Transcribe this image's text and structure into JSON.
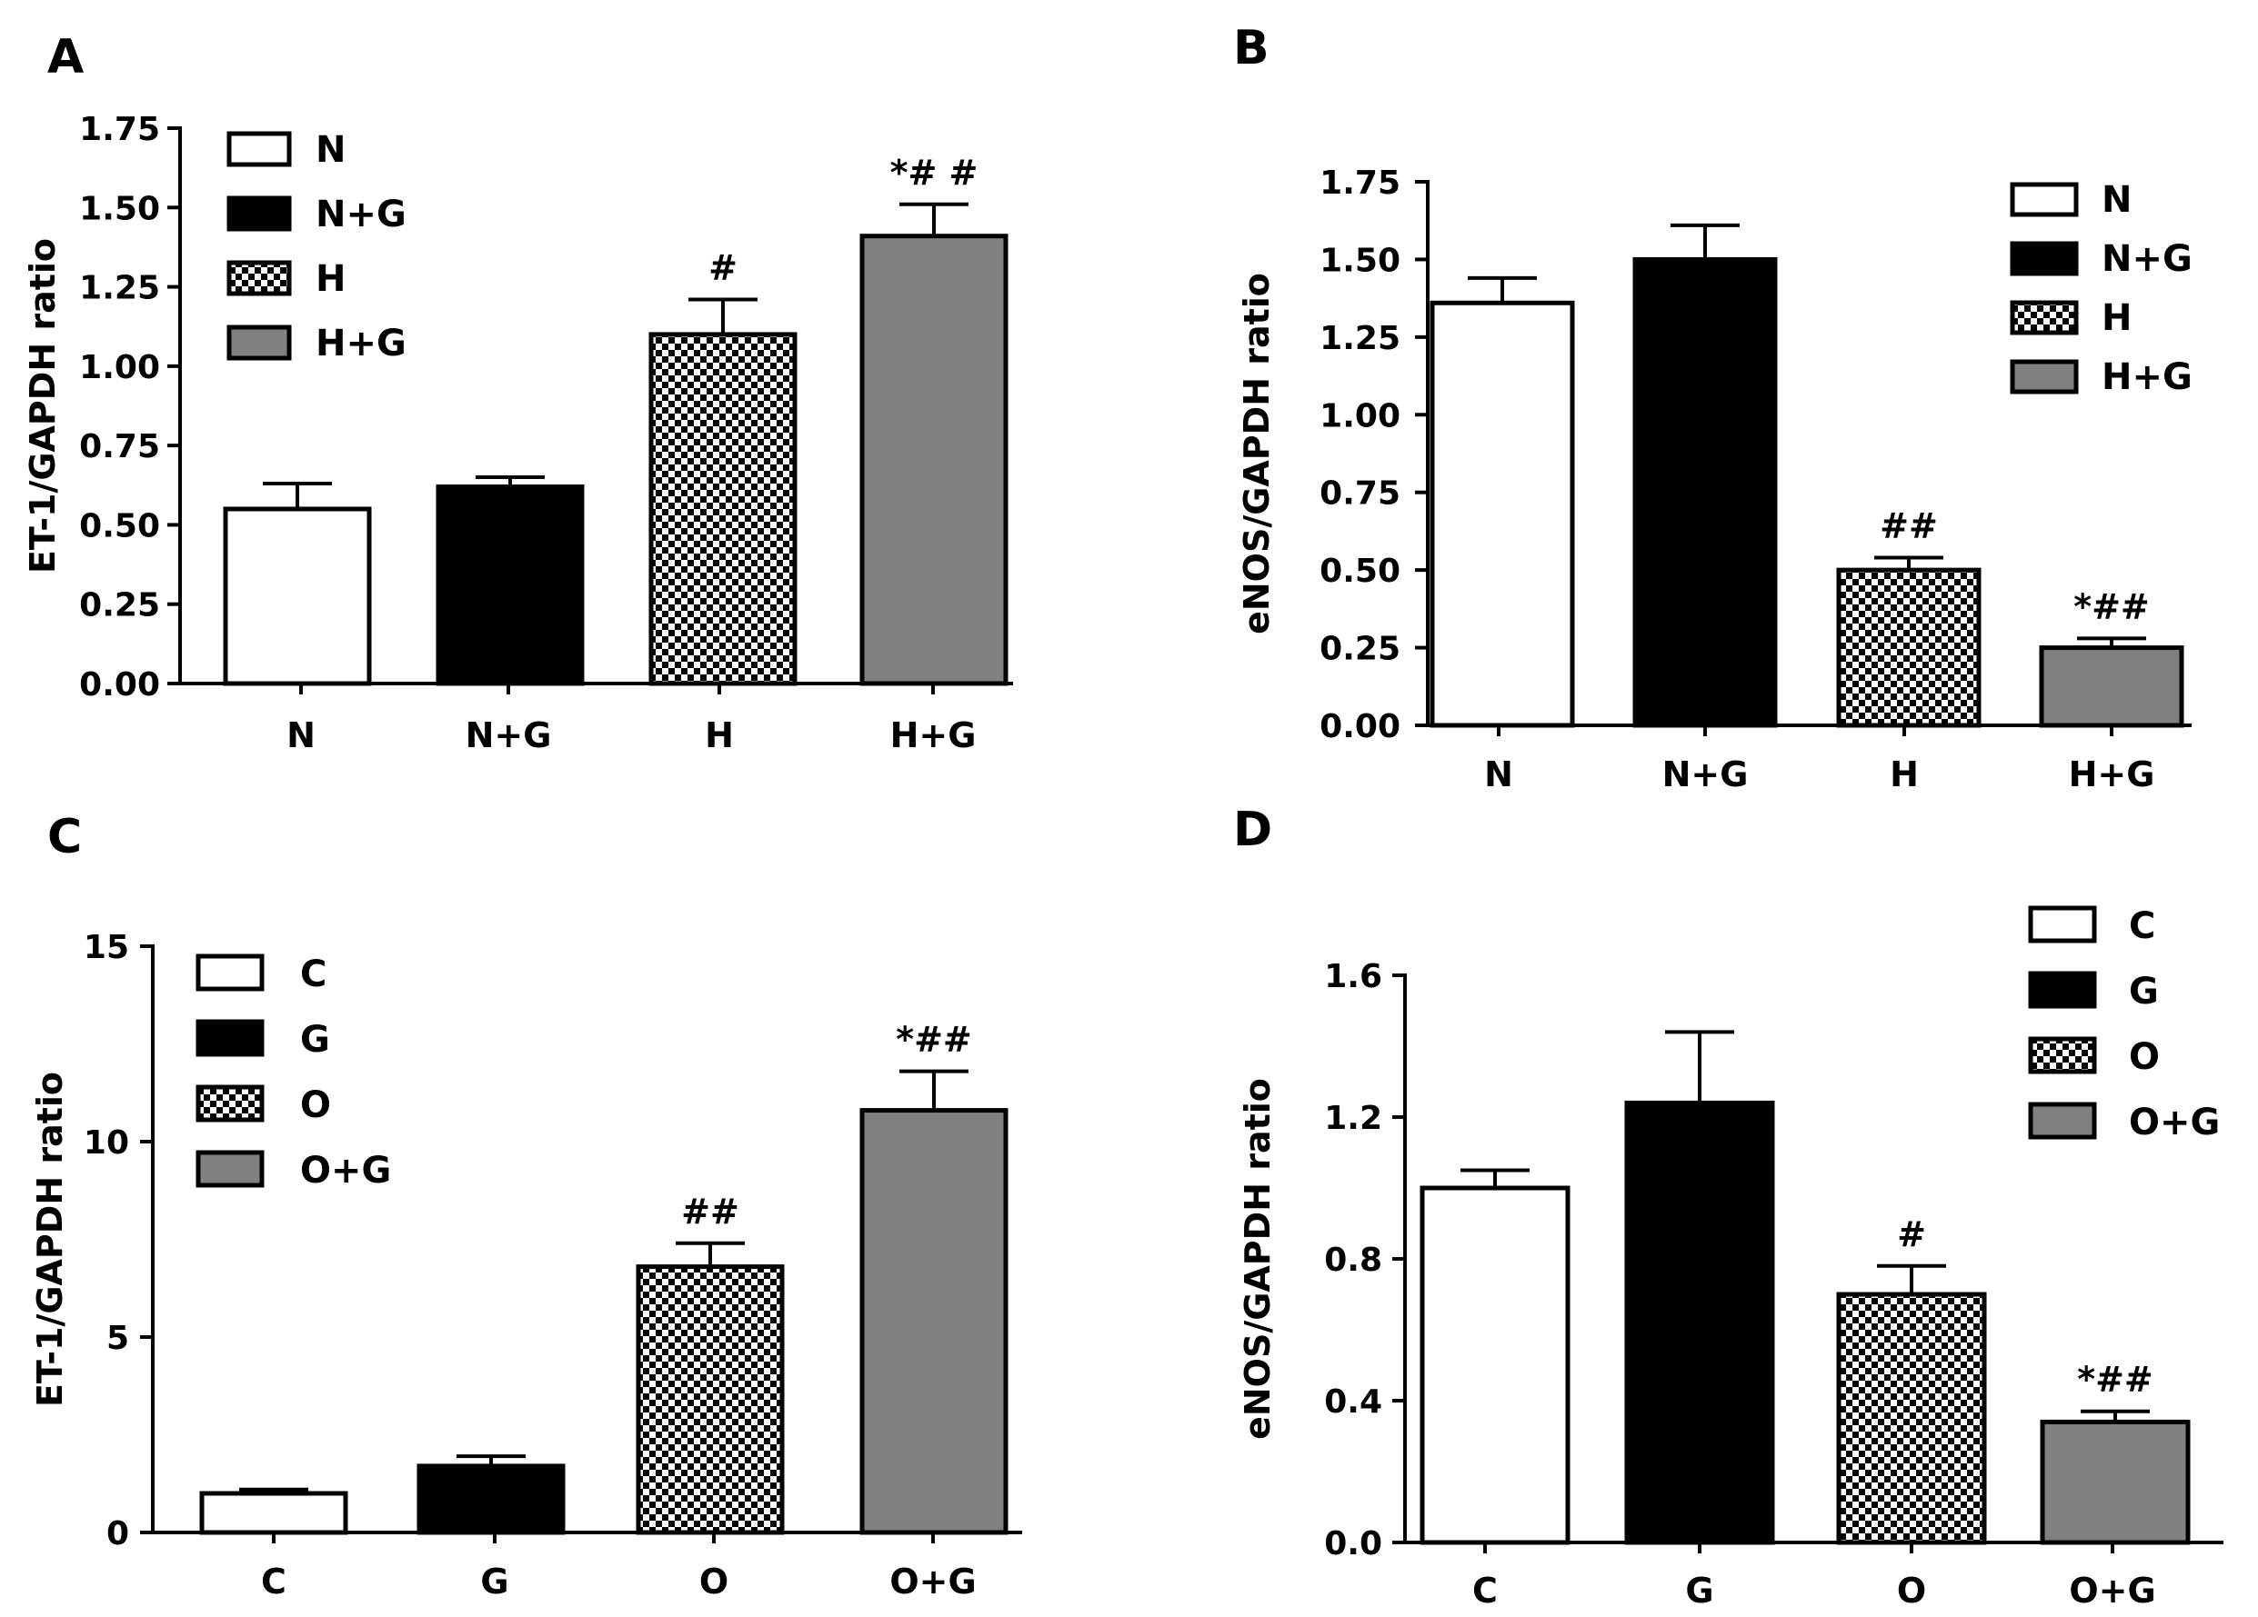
{
  "chart_data": [
    {
      "panel": "A",
      "type": "bar",
      "ylabel": "ET-1/GAPDH ratio",
      "xlabel": "",
      "ylim": [
        0,
        1.75
      ],
      "yticks": [
        "0.00",
        "0.25",
        "0.50",
        "0.75",
        "1.00",
        "1.25",
        "1.50",
        "1.75"
      ],
      "categories": [
        "N",
        "N+G",
        "H",
        "H+G"
      ],
      "values": [
        0.55,
        0.62,
        1.1,
        1.41
      ],
      "errors": [
        0.08,
        0.03,
        0.11,
        0.1
      ],
      "annotations": [
        "",
        "",
        "#",
        "*# #"
      ],
      "legend": [
        "N",
        "N+G",
        "H",
        "H+G"
      ],
      "legend_position": "top-left"
    },
    {
      "panel": "B",
      "type": "bar",
      "ylabel": "eNOS/GAPDH ratio",
      "xlabel": "",
      "ylim": [
        0,
        1.75
      ],
      "yticks": [
        "0.00",
        "0.25",
        "0.50",
        "0.75",
        "1.00",
        "1.25",
        "1.50",
        "1.75"
      ],
      "categories": [
        "N",
        "N+G",
        "H",
        "H+G"
      ],
      "values": [
        1.36,
        1.5,
        0.5,
        0.25
      ],
      "errors": [
        0.08,
        0.11,
        0.04,
        0.03
      ],
      "annotations": [
        "",
        "",
        "##",
        "*##"
      ],
      "legend": [
        "N",
        "N+G",
        "H",
        "H+G"
      ],
      "legend_position": "top-right"
    },
    {
      "panel": "C",
      "type": "bar",
      "ylabel": "ET-1/GAPDH ratio",
      "xlabel": "",
      "ylim": [
        0,
        15
      ],
      "yticks": [
        "0",
        "5",
        "10",
        "15"
      ],
      "categories": [
        "C",
        "G",
        "O",
        "O+G"
      ],
      "values": [
        1.0,
        1.7,
        6.8,
        10.8
      ],
      "errors": [
        0.1,
        0.25,
        0.6,
        1.0
      ],
      "annotations": [
        "",
        "",
        "##",
        "*##"
      ],
      "legend": [
        "C",
        "G",
        "O",
        "O+G"
      ],
      "legend_position": "top-left"
    },
    {
      "panel": "D",
      "type": "bar",
      "ylabel": "eNOS/GAPDH ratio",
      "xlabel": "",
      "ylim": [
        0,
        1.6
      ],
      "yticks": [
        "0.0",
        "0.4",
        "0.8",
        "1.2",
        "1.6"
      ],
      "categories": [
        "C",
        "G",
        "O",
        "O+G"
      ],
      "values": [
        1.0,
        1.24,
        0.7,
        0.34
      ],
      "errors": [
        0.05,
        0.2,
        0.08,
        0.03
      ],
      "annotations": [
        "",
        "",
        "#",
        "*##"
      ],
      "legend": [
        "C",
        "G",
        "O",
        "O+G"
      ],
      "legend_position": "top-right"
    }
  ],
  "colors": {
    "bar_fills": [
      "#ffffff",
      "#000000",
      "checker",
      "#808080"
    ],
    "axis": "#000000"
  }
}
